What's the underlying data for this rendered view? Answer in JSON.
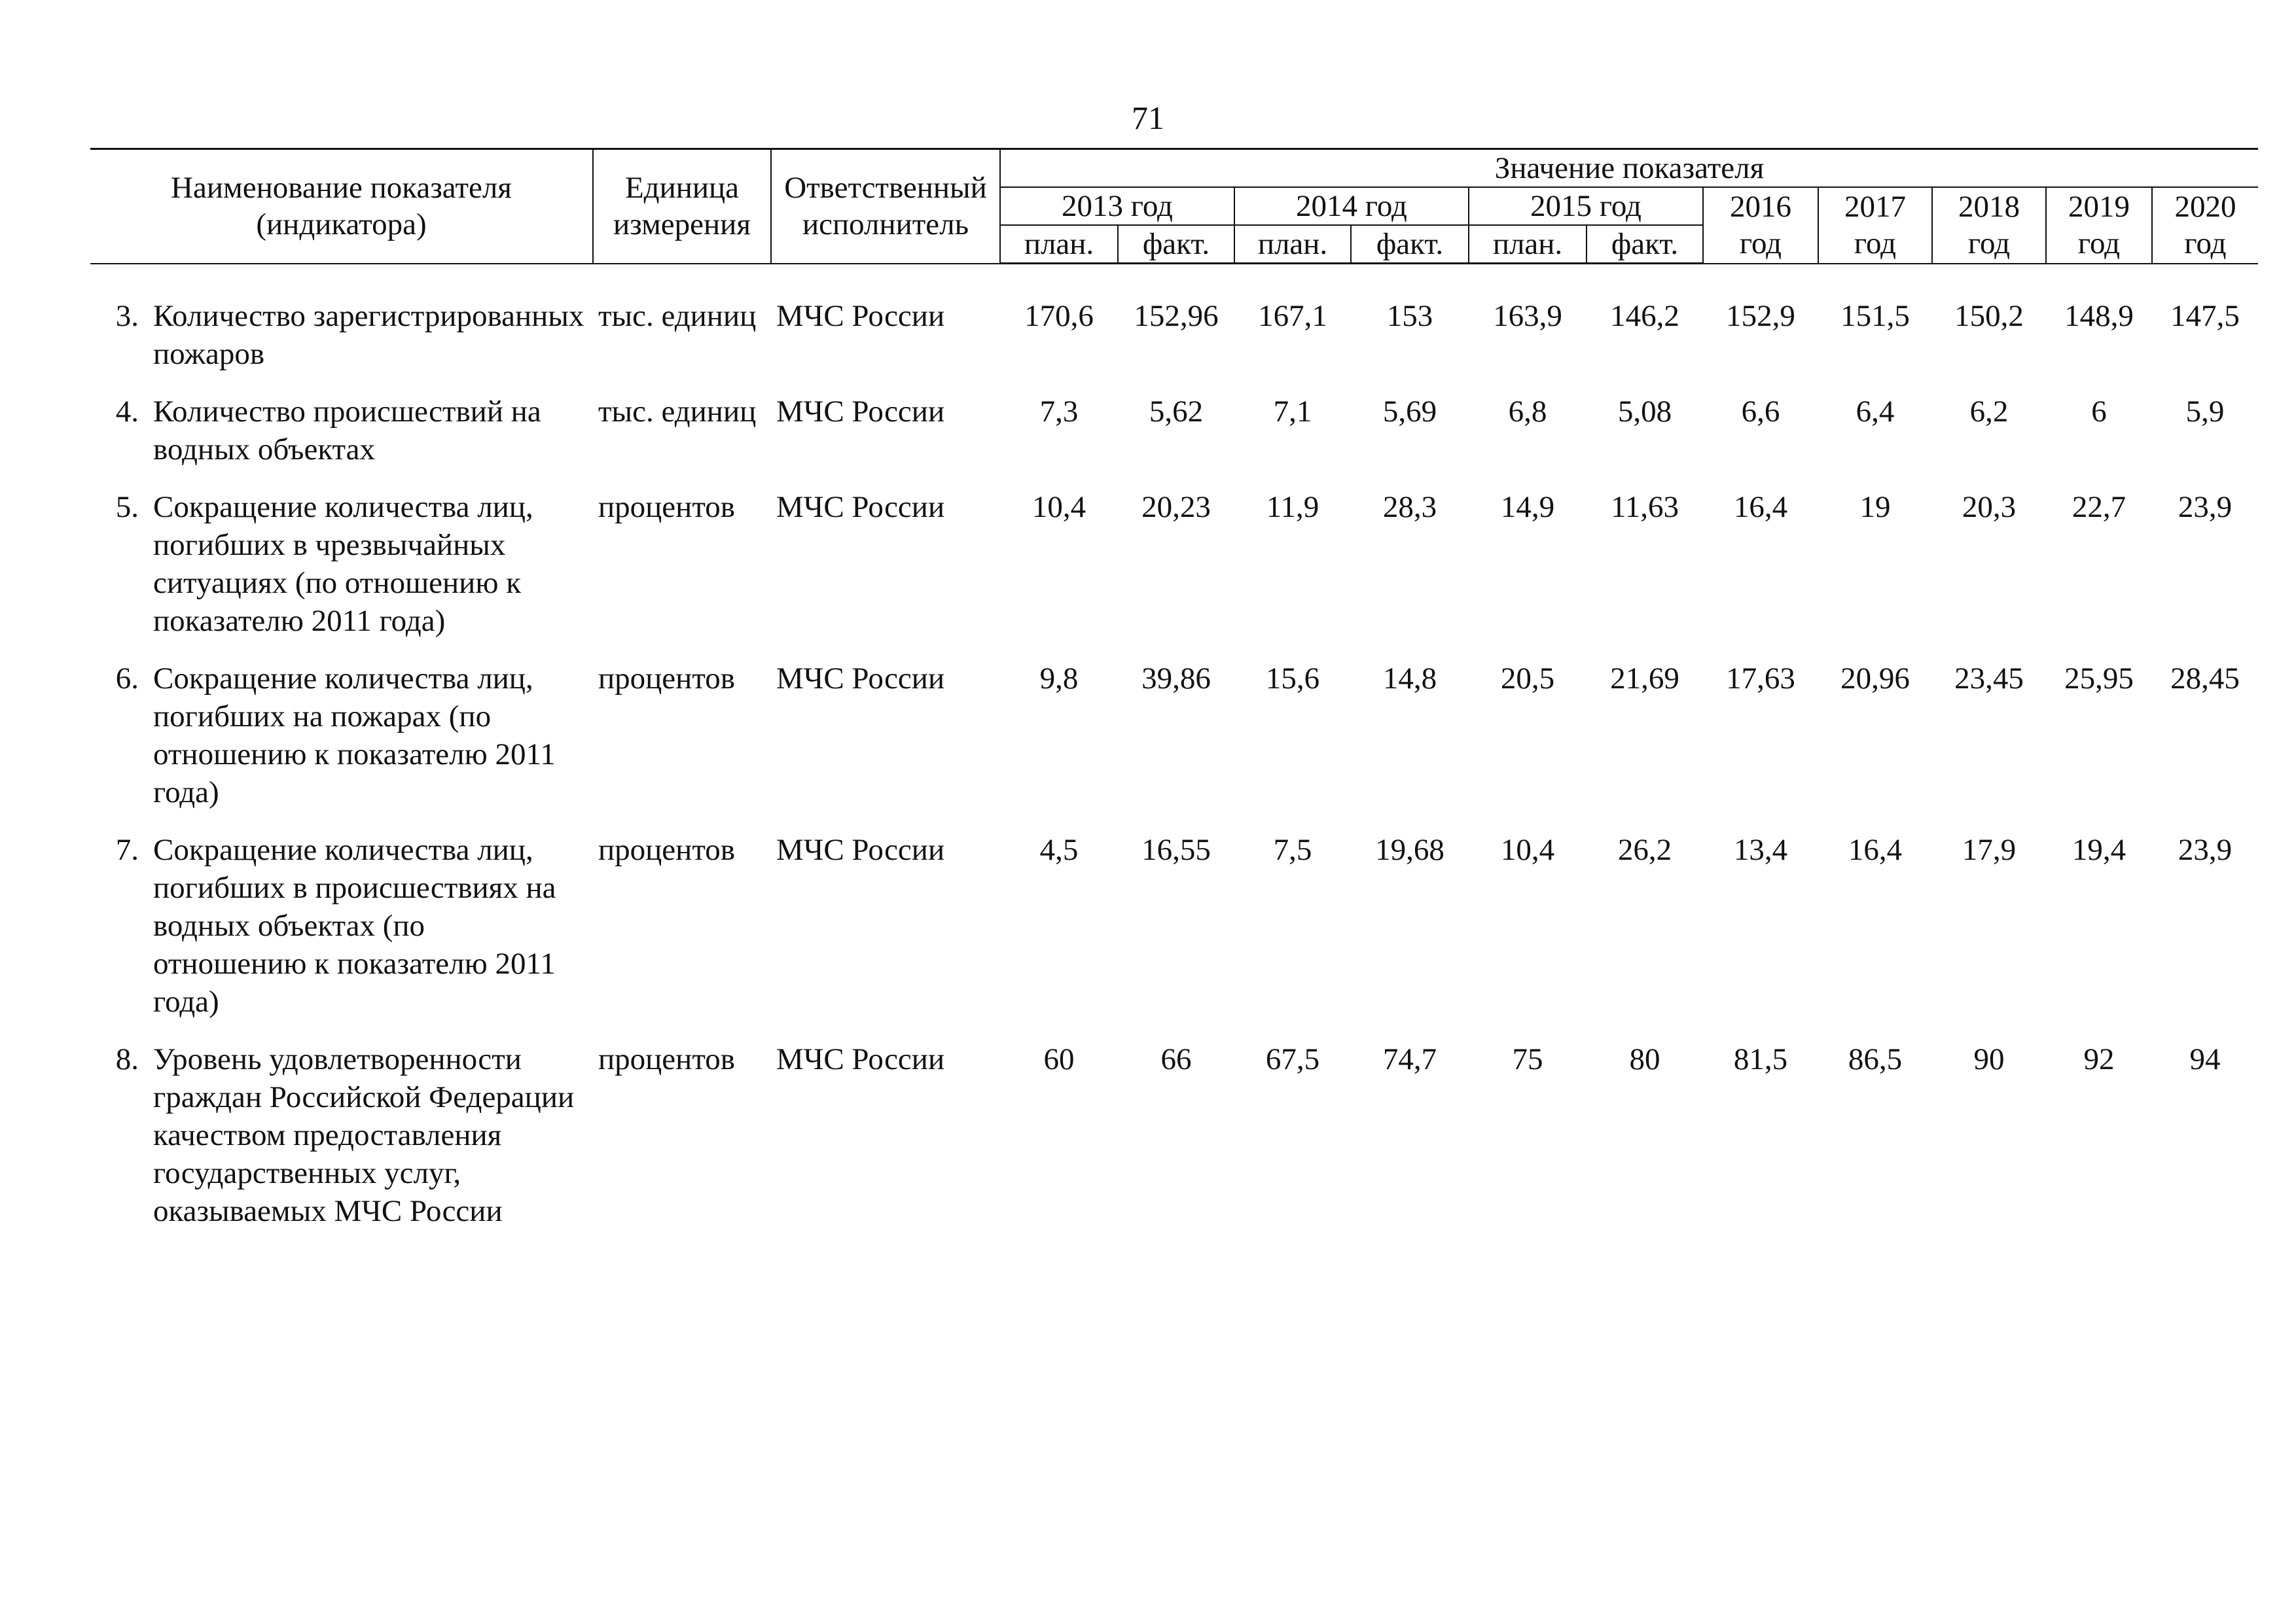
{
  "page_number": "71",
  "header": {
    "name_line1": "Наименование показателя",
    "name_line2": "(индикатора)",
    "unit_line1": "Единица",
    "unit_line2": "измерения",
    "exec_line1": "Ответственный",
    "exec_line2": "исполнитель",
    "value_title": "Значение показателя",
    "years_planfact": [
      "2013 год",
      "2014 год",
      "2015 год"
    ],
    "years_single": [
      "2016",
      "2017",
      "2018",
      "2019",
      "2020"
    ],
    "year_word": "год",
    "plan_label": "план.",
    "fact_label": "факт."
  },
  "rows": [
    {
      "num": "3.",
      "name": "Количество зарегистрированных пожаров",
      "unit": "тыс. единиц",
      "executor": "МЧС России",
      "values": [
        "170,6",
        "152,96",
        "167,1",
        "153",
        "163,9",
        "146,2",
        "152,9",
        "151,5",
        "150,2",
        "148,9",
        "147,5"
      ]
    },
    {
      "num": "4.",
      "name": "Количество происшествий на водных объектах",
      "unit": "тыс. единиц",
      "executor": "МЧС России",
      "values": [
        "7,3",
        "5,62",
        "7,1",
        "5,69",
        "6,8",
        "5,08",
        "6,6",
        "6,4",
        "6,2",
        "6",
        "5,9"
      ]
    },
    {
      "num": "5.",
      "name": "Сокращение количества лиц, погибших в чрезвычайных ситуациях (по отношению к показателю 2011 года)",
      "unit": "процентов",
      "executor": "МЧС России",
      "values": [
        "10,4",
        "20,23",
        "11,9",
        "28,3",
        "14,9",
        "11,63",
        "16,4",
        "19",
        "20,3",
        "22,7",
        "23,9"
      ]
    },
    {
      "num": "6.",
      "name": "Сокращение количества лиц, погибших на пожарах (по отношению к показателю 2011 года)",
      "unit": "процентов",
      "executor": "МЧС России",
      "values": [
        "9,8",
        "39,86",
        "15,6",
        "14,8",
        "20,5",
        "21,69",
        "17,63",
        "20,96",
        "23,45",
        "25,95",
        "28,45"
      ]
    },
    {
      "num": "7.",
      "name": "Сокращение количества лиц, погибших в происшествиях на водных объектах (по отношению к показателю 2011 года)",
      "unit": "процентов",
      "executor": "МЧС России",
      "values": [
        "4,5",
        "16,55",
        "7,5",
        "19,68",
        "10,4",
        "26,2",
        "13,4",
        "16,4",
        "17,9",
        "19,4",
        "23,9"
      ]
    },
    {
      "num": "8.",
      "name": "Уровень удовлетворенности граждан Российской Федерации качеством предоставления государственных услуг, оказываемых МЧС России",
      "unit": "процентов",
      "executor": "МЧС России",
      "values": [
        "60",
        "66",
        "67,5",
        "74,7",
        "75",
        "80",
        "81,5",
        "86,5",
        "90",
        "92",
        "94"
      ]
    }
  ]
}
